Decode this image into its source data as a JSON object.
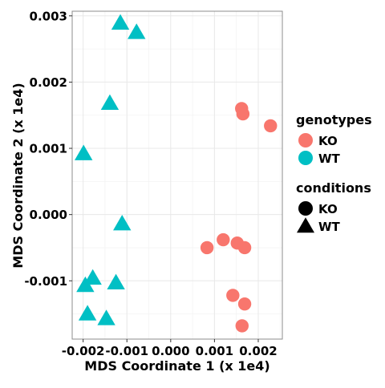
{
  "chart_data": {
    "type": "scatter",
    "title": "",
    "xlabel": "MDS Coordinate 1 (x 1e4)",
    "ylabel": "MDS Coordinate 2 (x 1e4)",
    "xlim": [
      -0.00225,
      0.00255
    ],
    "ylim": [
      -0.00188,
      0.00307
    ],
    "x_ticks": [
      -0.002,
      -0.001,
      0.0,
      0.001,
      0.002
    ],
    "x_tick_labels": [
      "-0.002",
      "-0.001",
      "0.000",
      "0.001",
      "0.002"
    ],
    "y_ticks": [
      -0.001,
      0.0,
      0.001,
      0.002,
      0.003
    ],
    "y_tick_labels": [
      "-0.001",
      "0.000",
      "0.001",
      "0.002",
      "0.003"
    ],
    "grid": true,
    "legend_position": "right",
    "legends": [
      {
        "title": "genotypes",
        "entries": [
          {
            "label": "KO",
            "color": "#F8766D"
          },
          {
            "label": "WT",
            "color": "#00BFC4"
          }
        ]
      },
      {
        "title": "conditions",
        "entries": [
          {
            "label": "KO",
            "shape": "circle"
          },
          {
            "label": "WT",
            "shape": "triangle"
          }
        ]
      }
    ],
    "series": [
      {
        "genotype": "KO",
        "condition": "KO",
        "color": "#F8766D",
        "shape": "circle",
        "points": [
          {
            "x": 0.00162,
            "y": 0.0016
          },
          {
            "x": 0.00165,
            "y": 0.00152
          },
          {
            "x": 0.00228,
            "y": 0.00134
          },
          {
            "x": 0.00083,
            "y": -0.0005
          },
          {
            "x": 0.0012,
            "y": -0.00038
          },
          {
            "x": 0.00152,
            "y": -0.00043
          },
          {
            "x": 0.00169,
            "y": -0.0005
          },
          {
            "x": 0.00142,
            "y": -0.00122
          },
          {
            "x": 0.00169,
            "y": -0.00135
          },
          {
            "x": 0.00163,
            "y": -0.00168
          }
        ]
      },
      {
        "genotype": "WT",
        "condition": "WT",
        "color": "#00BFC4",
        "shape": "triangle",
        "points": [
          {
            "x": -0.00115,
            "y": 0.00288
          },
          {
            "x": -0.00078,
            "y": 0.00274
          },
          {
            "x": -0.00139,
            "y": 0.00167
          },
          {
            "x": -0.00199,
            "y": 0.00091
          },
          {
            "x": -0.00111,
            "y": -0.00015
          },
          {
            "x": -0.00178,
            "y": -0.00097
          },
          {
            "x": -0.00195,
            "y": -0.00108
          },
          {
            "x": -0.00125,
            "y": -0.00104
          },
          {
            "x": -0.0019,
            "y": -0.00151
          },
          {
            "x": -0.00147,
            "y": -0.00158
          }
        ]
      }
    ]
  }
}
